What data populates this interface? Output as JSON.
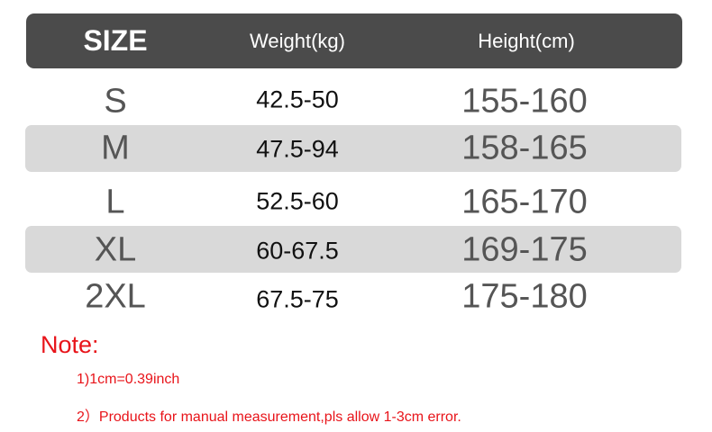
{
  "table": {
    "headers": [
      "SIZE",
      "Weight(kg)",
      "Height(cm)"
    ],
    "rows": [
      {
        "size": "S",
        "weight": "42.5-50",
        "height": "155-160",
        "shaded": false
      },
      {
        "size": "M",
        "weight": "47.5-94",
        "height": "158-165",
        "shaded": true
      },
      {
        "size": "L",
        "weight": "52.5-60",
        "height": "165-170",
        "shaded": false
      },
      {
        "size": "XL",
        "weight": "60-67.5",
        "height": "169-175",
        "shaded": true
      },
      {
        "size": "2XL",
        "weight": "67.5-75",
        "height": "175-180",
        "shaded": false
      }
    ]
  },
  "notes": {
    "title": "Note:",
    "items": [
      "1)1cm=0.39inch",
      "2）Products for manual measurement,pls allow 1-3cm error."
    ]
  },
  "colors": {
    "header_bg": "#4b4b4b",
    "band_bg": "#d9d9d9",
    "note": "#e8141a"
  }
}
